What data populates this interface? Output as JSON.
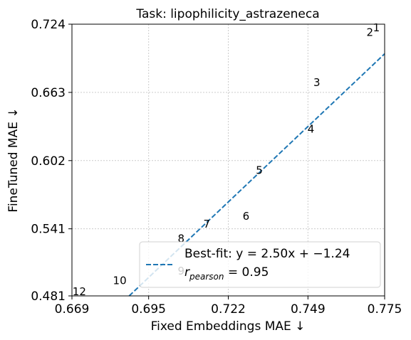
{
  "chart_data": {
    "type": "scatter",
    "title": "Task: lipophilicity_astrazeneca",
    "xlabel": "Fixed Embeddings MAE ↓",
    "ylabel": "FineTuned MAE ↓",
    "xlim": [
      0.669,
      0.775
    ],
    "ylim": [
      0.481,
      0.724
    ],
    "x_ticks": [
      "0.669",
      "0.695",
      "0.722",
      "0.749",
      "0.775"
    ],
    "y_ticks": [
      "0.481",
      "0.541",
      "0.602",
      "0.663",
      "0.724"
    ],
    "grid": true,
    "points": [
      {
        "label": "1",
        "x": 0.7722,
        "y": 0.7205
      },
      {
        "label": "2",
        "x": 0.77,
        "y": 0.7165
      },
      {
        "label": "3",
        "x": 0.752,
        "y": 0.6715
      },
      {
        "label": "4",
        "x": 0.75,
        "y": 0.63
      },
      {
        "label": "5",
        "x": 0.7325,
        "y": 0.593
      },
      {
        "label": "6",
        "x": 0.728,
        "y": 0.552
      },
      {
        "label": "7",
        "x": 0.7147,
        "y": 0.545
      },
      {
        "label": "8",
        "x": 0.706,
        "y": 0.532
      },
      {
        "label": "9",
        "x": 0.706,
        "y": 0.503
      },
      {
        "label": "10",
        "x": 0.6852,
        "y": 0.4945
      },
      {
        "label": "12",
        "x": 0.6715,
        "y": 0.4845
      }
    ],
    "fit_line": {
      "slope": 2.5,
      "intercept": -1.24,
      "color": "#1f77b4",
      "style": "dashed"
    },
    "legend": {
      "placement": "lower right",
      "fit_text": "Best-fit: y = 2.50x + −1.24",
      "r_label": "r",
      "r_sub": "pearson",
      "r_value": " = 0.95"
    }
  }
}
